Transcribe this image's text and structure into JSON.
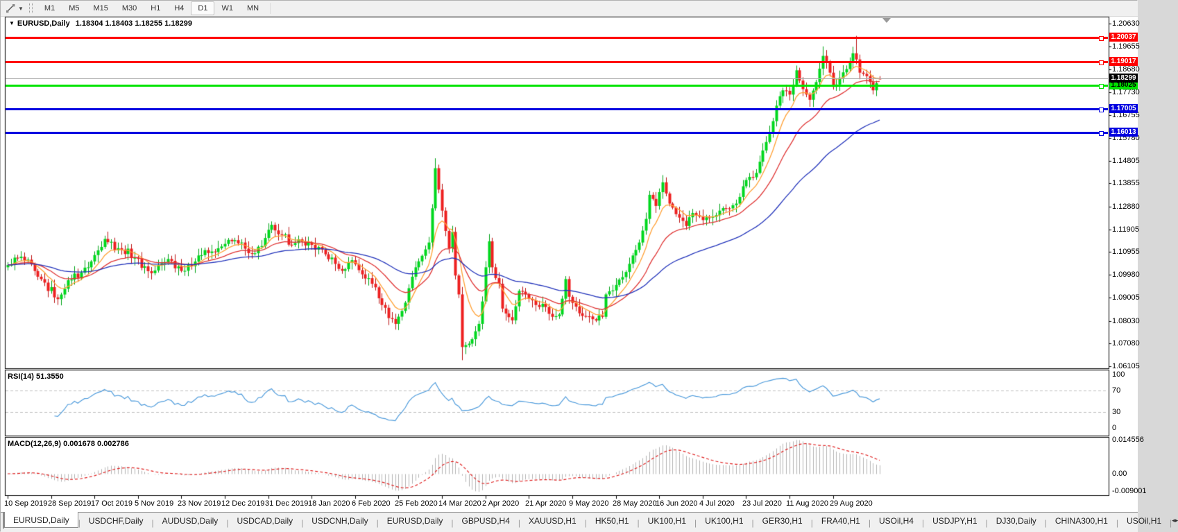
{
  "toolbar": {
    "dropdown_caret": "▼",
    "timeframes": [
      {
        "label": "M1",
        "active": false
      },
      {
        "label": "M5",
        "active": false
      },
      {
        "label": "M15",
        "active": false
      },
      {
        "label": "M30",
        "active": false
      },
      {
        "label": "H1",
        "active": false
      },
      {
        "label": "H4",
        "active": false
      },
      {
        "label": "D1",
        "active": true
      },
      {
        "label": "W1",
        "active": false
      },
      {
        "label": "MN",
        "active": false
      }
    ]
  },
  "chart": {
    "collapse_icon": "▼",
    "title_symbol": "EURUSD,Daily",
    "title_ohlc": "1.18304 1.18403 1.18255 1.18299"
  },
  "rsi_panel": {
    "title": "RSI(14) 51.3550",
    "axis_labels": [
      "100",
      "70",
      "30",
      "0"
    ]
  },
  "macd_panel": {
    "title": "MACD(12,26,9) 0.001678 0.002786",
    "axis_labels": [
      "0.014556",
      "0.00",
      "-0.009001"
    ]
  },
  "price_axis": {
    "labels": [
      "1.20630",
      "1.19655",
      "1.18680",
      "1.17730",
      "1.16755",
      "1.15780",
      "1.14805",
      "1.13855",
      "1.12880",
      "1.11905",
      "1.10955",
      "1.09980",
      "1.09005",
      "1.08030",
      "1.07080",
      "1.06105"
    ]
  },
  "date_axis": {
    "labels": [
      "10 Sep 2019",
      "28 Sep 2019",
      "17 Oct 2019",
      "5 Nov 2019",
      "23 Nov 2019",
      "12 Dec 2019",
      "31 Dec 2019",
      "18 Jan 2020",
      "6 Feb 2020",
      "25 Feb 2020",
      "14 Mar 2020",
      "2 Apr 2020",
      "21 Apr 2020",
      "9 May 2020",
      "28 May 2020",
      "16 Jun 2020",
      "4 Jul 2020",
      "23 Jul 2020",
      "11 Aug 2020",
      "29 Aug 2020"
    ],
    "label_bar_indices": [
      0,
      13,
      26,
      39,
      52,
      65,
      78,
      91,
      104,
      117,
      130,
      143,
      156,
      169,
      182,
      195,
      208,
      221,
      234,
      247
    ]
  },
  "tabs": {
    "items": [
      {
        "label": "EURUSD,Daily",
        "active": true
      },
      {
        "label": "USDCHF,Daily",
        "active": false
      },
      {
        "label": "AUDUSD,Daily",
        "active": false
      },
      {
        "label": "USDCAD,Daily",
        "active": false
      },
      {
        "label": "USDCNH,Daily",
        "active": false
      },
      {
        "label": "EURUSD,Daily",
        "active": false
      },
      {
        "label": "GBPUSD,H4",
        "active": false
      },
      {
        "label": "XAUUSD,H1",
        "active": false
      },
      {
        "label": "HK50,H1",
        "active": false
      },
      {
        "label": "UK100,H1",
        "active": false
      },
      {
        "label": "UK100,H1",
        "active": false
      },
      {
        "label": "GER30,H1",
        "active": false
      },
      {
        "label": "FRA40,H1",
        "active": false
      },
      {
        "label": "USOil,H4",
        "active": false
      },
      {
        "label": "USDJPY,H1",
        "active": false
      },
      {
        "label": "DJ30,Daily",
        "active": false
      },
      {
        "label": "CHINA300,H1",
        "active": false
      },
      {
        "label": "USOil,H1",
        "active": false
      }
    ],
    "scroll_left": "◂",
    "scroll_right": "▸"
  },
  "chart_data": {
    "type": "candlestick",
    "symbol": "EURUSD",
    "timeframe": "Daily",
    "bars": 262,
    "ohlc_current": {
      "open": 1.18304,
      "high": 1.18403,
      "low": 1.18255,
      "close": 1.18299
    },
    "price_range": {
      "top": 1.2063,
      "bottom": 1.06105
    },
    "close_anchors": [
      [
        0,
        1.104
      ],
      [
        4,
        1.1075
      ],
      [
        9,
        1.099
      ],
      [
        15,
        1.0895
      ],
      [
        18,
        1.0975
      ],
      [
        24,
        1.103
      ],
      [
        29,
        1.115
      ],
      [
        34,
        1.1105
      ],
      [
        38,
        1.107
      ],
      [
        43,
        1.1005
      ],
      [
        48,
        1.1065
      ],
      [
        53,
        1.1015
      ],
      [
        57,
        1.108
      ],
      [
        62,
        1.1095
      ],
      [
        68,
        1.1145
      ],
      [
        72,
        1.109
      ],
      [
        76,
        1.112
      ],
      [
        79,
        1.121
      ],
      [
        81,
        1.117
      ],
      [
        85,
        1.1125
      ],
      [
        90,
        1.1135
      ],
      [
        95,
        1.1085
      ],
      [
        100,
        1.1015
      ],
      [
        103,
        1.106
      ],
      [
        106,
        1.1
      ],
      [
        110,
        1.0945
      ],
      [
        112,
        1.087
      ],
      [
        116,
        1.079
      ],
      [
        119,
        1.088
      ],
      [
        121,
        1.099
      ],
      [
        123,
        1.1055
      ],
      [
        126,
        1.1135
      ],
      [
        127,
        1.128
      ],
      [
        128,
        1.145
      ],
      [
        130,
        1.127
      ],
      [
        131,
        1.1184
      ],
      [
        132,
        1.111
      ],
      [
        133,
        1.118
      ],
      [
        134,
        1.0995
      ],
      [
        135,
        1.0915
      ],
      [
        136,
        1.0692
      ],
      [
        137,
        1.07
      ],
      [
        139,
        1.0725
      ],
      [
        141,
        1.079
      ],
      [
        142,
        1.0885
      ],
      [
        143,
        1.103
      ],
      [
        144,
        1.114
      ],
      [
        145,
        1.103
      ],
      [
        147,
        1.096
      ],
      [
        148,
        1.0855
      ],
      [
        151,
        1.0805
      ],
      [
        153,
        1.093
      ],
      [
        155,
        1.0915
      ],
      [
        158,
        1.087
      ],
      [
        160,
        1.0875
      ],
      [
        163,
        1.082
      ],
      [
        165,
        1.083
      ],
      [
        167,
        1.098
      ],
      [
        168,
        1.0905
      ],
      [
        171,
        1.0835
      ],
      [
        175,
        1.081
      ],
      [
        178,
        1.082
      ],
      [
        179,
        1.0915
      ],
      [
        182,
        1.0955
      ],
      [
        185,
        1.101
      ],
      [
        187,
        1.108
      ],
      [
        189,
        1.1135
      ],
      [
        191,
        1.1235
      ],
      [
        192,
        1.1337
      ],
      [
        194,
        1.129
      ],
      [
        196,
        1.139
      ],
      [
        198,
        1.13
      ],
      [
        200,
        1.1255
      ],
      [
        203,
        1.1205
      ],
      [
        205,
        1.126
      ],
      [
        208,
        1.123
      ],
      [
        210,
        1.124
      ],
      [
        213,
        1.127
      ],
      [
        215,
        1.128
      ],
      [
        218,
        1.13
      ],
      [
        221,
        1.14
      ],
      [
        224,
        1.143
      ],
      [
        226,
        1.1525
      ],
      [
        228,
        1.16
      ],
      [
        230,
        1.1715
      ],
      [
        232,
        1.178
      ],
      [
        233,
        1.1778
      ],
      [
        234,
        1.1762
      ],
      [
        236,
        1.1865
      ],
      [
        238,
        1.1785
      ],
      [
        240,
        1.174
      ],
      [
        242,
        1.1815
      ],
      [
        244,
        1.1926
      ],
      [
        246,
        1.1855
      ],
      [
        247,
        1.1795
      ],
      [
        249,
        1.1833
      ],
      [
        251,
        1.187
      ],
      [
        252,
        1.1903
      ],
      [
        253,
        1.1937
      ],
      [
        254,
        1.1911
      ],
      [
        255,
        1.1855
      ],
      [
        256,
        1.185
      ],
      [
        257,
        1.184
      ],
      [
        258,
        1.1815
      ],
      [
        259,
        1.178
      ],
      [
        260,
        1.181
      ],
      [
        261,
        1.18299
      ]
    ],
    "spikes": {
      "116": {
        "low": 1.0778
      },
      "128": {
        "high": 1.1492
      },
      "136": {
        "low": 1.0636
      },
      "244": {
        "high": 1.1966
      },
      "254": {
        "high": 1.2011
      }
    },
    "moving_averages": [
      {
        "type": "ema",
        "period": 8,
        "color": "#ffa033"
      },
      {
        "type": "ema",
        "period": 21,
        "color": "#e03333"
      },
      {
        "type": "ema",
        "period": 55,
        "color": "#2233bb"
      }
    ],
    "horizontal_lines": [
      {
        "price": 1.20037,
        "label": "1.20037",
        "color": "#ff0000",
        "text_color": "#ffffff",
        "thickness": 3
      },
      {
        "price": 1.19017,
        "label": "1.19017",
        "color": "#ff0000",
        "text_color": "#ffffff",
        "thickness": 3
      },
      {
        "price": 1.18025,
        "label": "1.18025",
        "color": "#00e400",
        "text_color": "#000000",
        "thickness": 3
      },
      {
        "price": 1.17005,
        "label": "1.17005",
        "color": "#0000e0",
        "text_color": "#ffffff",
        "thickness": 3
      },
      {
        "price": 1.16013,
        "label": "1.16013",
        "color": "#0000e0",
        "text_color": "#ffffff",
        "thickness": 3
      }
    ],
    "current_price": {
      "price": 1.18299,
      "label": "1.18299",
      "color": "#aaaaaa",
      "flag_bg": "#000000",
      "flag_text": "#ffffff"
    },
    "candle_colors": {
      "up_fill": "#00d81e",
      "up_edge": "#00a316",
      "down_fill": "#ee2020",
      "down_edge": "#bb1212"
    },
    "rsi": {
      "period": 14,
      "value": 51.355,
      "levels": [
        70,
        30
      ],
      "range": [
        0,
        100
      ],
      "color": "#4d9bdc",
      "level_color": "#c0c0c0"
    },
    "macd": {
      "fast": 12,
      "slow": 26,
      "signal_period": 9,
      "value": 0.001678,
      "signal_value": 0.002786,
      "axis_max": 0.014556,
      "axis_min": -0.009001,
      "histogram_color": "#b4b4b4",
      "signal_color": "#e02020"
    }
  }
}
